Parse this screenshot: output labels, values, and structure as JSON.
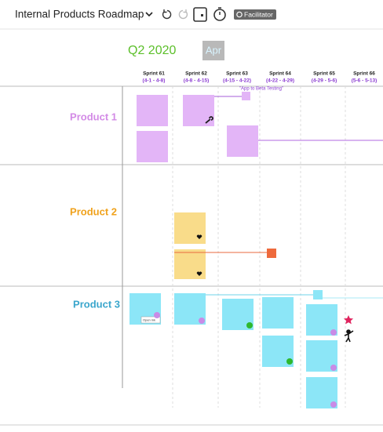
{
  "toolbar": {
    "title": "Internal Products Roadmap",
    "facilitator": "Facilitator"
  },
  "board": {
    "quarter": "Q2 2020",
    "month": "Apr",
    "sprints": [
      {
        "name": "Sprint 61",
        "dates": "(4-1 - 4-8)"
      },
      {
        "name": "Sprint 62",
        "dates": "(4-8 - 4-15)"
      },
      {
        "name": "Sprint 63",
        "dates": "(4-15 - 4-22)"
      },
      {
        "name": "Sprint 64",
        "dates": "(4-22 - 4-29)"
      },
      {
        "name": "Sprint 65",
        "dates": "(4-29 - 5-6)"
      },
      {
        "name": "Sprint 66",
        "dates": "(5-6 - 5-13)"
      }
    ],
    "milestone": "\"App to Beta Testing\"",
    "rows": [
      "Product 1",
      "Product 2",
      "Product 3"
    ],
    "note": "Open ink"
  }
}
